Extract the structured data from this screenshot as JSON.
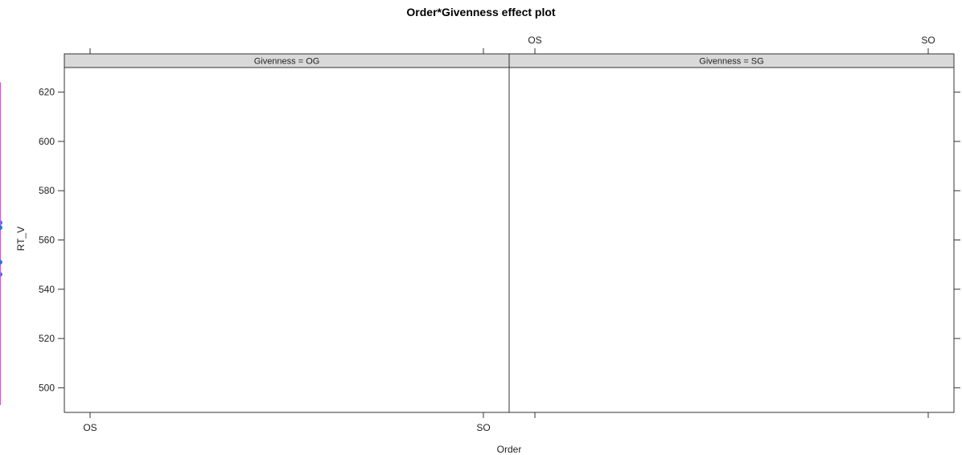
{
  "chart_data": {
    "type": "line",
    "title": "Order*Givenness effect plot",
    "xlabel": "Order",
    "ylabel": "RT_V",
    "categories": [
      "OS",
      "SO"
    ],
    "ylim": [
      490,
      630
    ],
    "yticks": [
      500,
      520,
      540,
      560,
      580,
      600,
      620
    ],
    "line_color": "#1f78e8",
    "errorbar_color": "#ff33ff",
    "panels": [
      {
        "label": "Givenness = OG",
        "points": [
          {
            "x": "OS",
            "fit": 546,
            "lower": 493,
            "upper": 599
          },
          {
            "x": "SO",
            "fit": 567,
            "lower": 511,
            "upper": 624
          }
        ]
      },
      {
        "label": "Givenness = SG",
        "points": [
          {
            "x": "OS",
            "fit": 565,
            "lower": 508,
            "upper": 622
          },
          {
            "x": "SO",
            "fit": 551,
            "lower": 493,
            "upper": 609
          }
        ]
      }
    ]
  }
}
